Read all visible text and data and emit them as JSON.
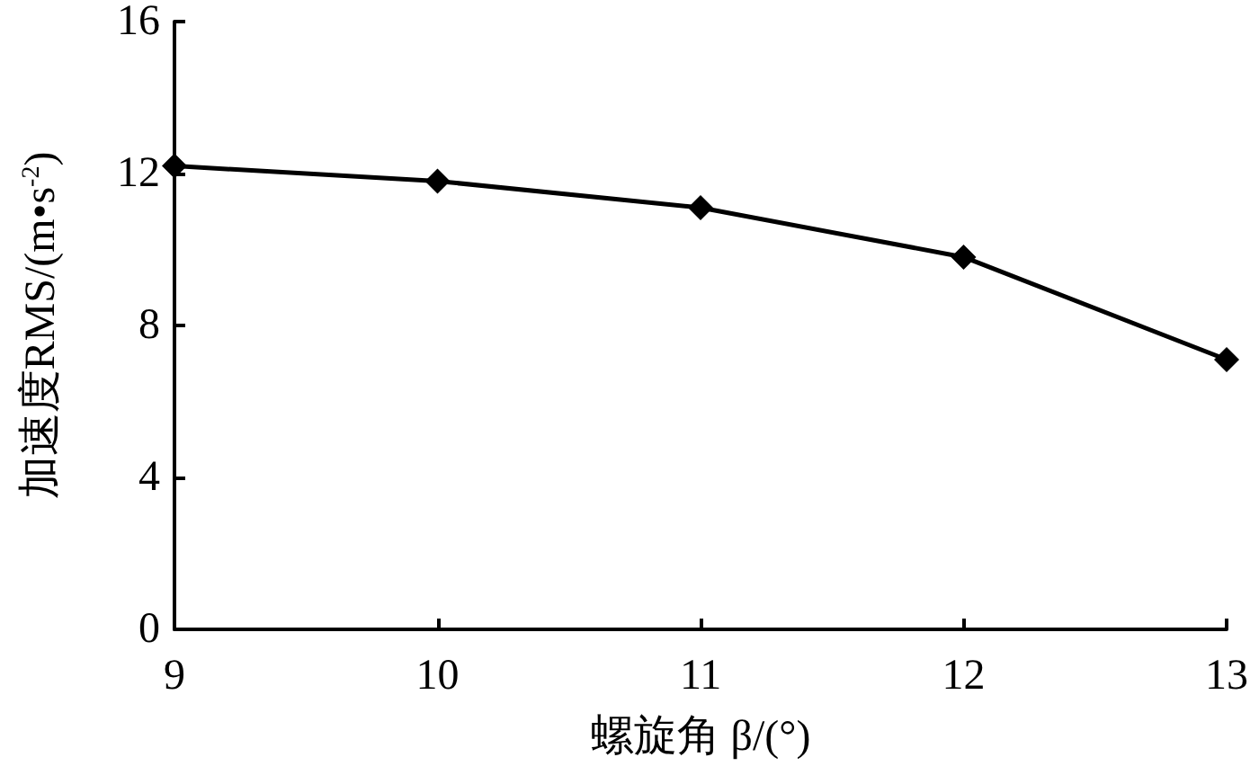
{
  "chart_data": {
    "type": "line",
    "xlabel": "螺旋角 β/(°)",
    "ylabel": "加速度RMS/(m•s$^{-2}$)",
    "x": [
      9,
      10,
      11,
      12,
      13
    ],
    "series": [
      {
        "color": "#000000",
        "values": [
          12.2,
          11.8,
          11.1,
          9.8,
          7.1
        ]
      }
    ],
    "xlim": [
      9,
      13
    ],
    "xticks": [
      9,
      10,
      11,
      12,
      13
    ],
    "ylim": [
      0,
      16
    ],
    "yticks": [
      0,
      4,
      8,
      12,
      16
    ],
    "grid": false,
    "marker": "diamond",
    "line_style": "solid"
  }
}
